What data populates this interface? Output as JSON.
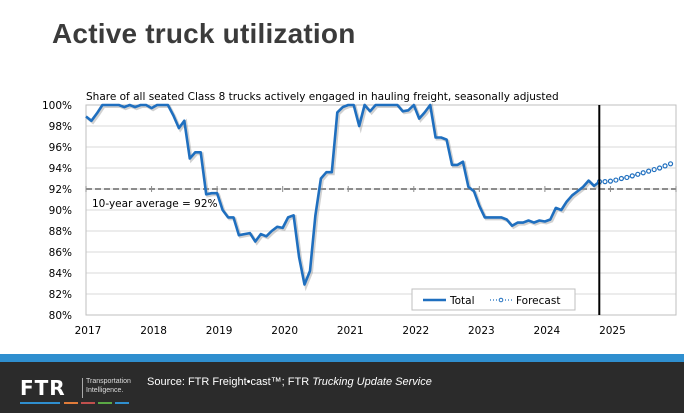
{
  "slide": {
    "title": "Active truck utilization"
  },
  "footer": {
    "logo_text": "FTR",
    "logo_subtitle_line1": "Transportation",
    "logo_subtitle_line2": "Intelligence.",
    "source_prefix": "Source: FTR Freight•cast™; FTR ",
    "source_italic": "Trucking Update Service",
    "stripe_color": "#2f8fcf",
    "logo_bar_colors": [
      "#2f8fcf",
      "#e07b39",
      "#c0504d",
      "#5aa845",
      "#2f8fcf"
    ]
  },
  "chart_data": {
    "type": "line",
    "title": "Share of all seated Class 8 trucks actively engaged in hauling freight, seasonally adjusted",
    "xlabel": "",
    "ylabel": "",
    "ylim": [
      80,
      100
    ],
    "xlim": [
      2017,
      2026
    ],
    "y_ticks": [
      "80%",
      "82%",
      "84%",
      "86%",
      "88%",
      "90%",
      "92%",
      "94%",
      "96%",
      "98%",
      "100%"
    ],
    "y_tick_values": [
      80,
      82,
      84,
      86,
      88,
      90,
      92,
      94,
      96,
      98,
      100
    ],
    "x_ticks": [
      "2017",
      "2018",
      "2019",
      "2020",
      "2021",
      "2022",
      "2023",
      "2024",
      "2025"
    ],
    "x_tick_values": [
      2017,
      2018,
      2019,
      2020,
      2021,
      2022,
      2023,
      2024,
      2025
    ],
    "grid": true,
    "legend": {
      "position": "bottom-right",
      "entries": [
        "Total",
        "Forecast"
      ]
    },
    "reference_line": {
      "value": 92,
      "label": "10-year average = 92%",
      "style": "dashed",
      "color": "#8c8c8c"
    },
    "vertical_marker": {
      "x": 2024.83,
      "color": "#000000"
    },
    "colors": {
      "total": "#1f6fbf",
      "forecast": "#1f6fbf",
      "grid": "#d9d9d9"
    },
    "series": [
      {
        "name": "Total",
        "style": "solid",
        "x": [
          2017.0,
          2017.083,
          2017.167,
          2017.25,
          2017.333,
          2017.417,
          2017.5,
          2017.583,
          2017.667,
          2017.75,
          2017.833,
          2017.917,
          2018.0,
          2018.083,
          2018.167,
          2018.25,
          2018.333,
          2018.417,
          2018.5,
          2018.583,
          2018.667,
          2018.75,
          2018.833,
          2018.917,
          2019.0,
          2019.083,
          2019.167,
          2019.25,
          2019.333,
          2019.417,
          2019.5,
          2019.583,
          2019.667,
          2019.75,
          2019.833,
          2019.917,
          2020.0,
          2020.083,
          2020.167,
          2020.25,
          2020.333,
          2020.417,
          2020.5,
          2020.583,
          2020.667,
          2020.75,
          2020.833,
          2020.917,
          2021.0,
          2021.083,
          2021.167,
          2021.25,
          2021.333,
          2021.417,
          2021.5,
          2021.583,
          2021.667,
          2021.75,
          2021.833,
          2021.917,
          2022.0,
          2022.083,
          2022.167,
          2022.25,
          2022.333,
          2022.417,
          2022.5,
          2022.583,
          2022.667,
          2022.75,
          2022.833,
          2022.917,
          2023.0,
          2023.083,
          2023.167,
          2023.25,
          2023.333,
          2023.417,
          2023.5,
          2023.583,
          2023.667,
          2023.75,
          2023.833,
          2023.917,
          2024.0,
          2024.083,
          2024.167,
          2024.25,
          2024.333,
          2024.417,
          2024.5,
          2024.583,
          2024.667,
          2024.75,
          2024.833
        ],
        "values": [
          98.9,
          98.5,
          99.2,
          100.0,
          100.0,
          100.0,
          100.0,
          99.8,
          100.0,
          99.8,
          100.0,
          100.0,
          99.7,
          100.0,
          100.0,
          100.0,
          99.0,
          97.8,
          98.5,
          94.9,
          95.5,
          95.5,
          91.5,
          91.6,
          91.6,
          90.0,
          89.3,
          89.3,
          87.6,
          87.7,
          87.8,
          87.0,
          87.7,
          87.5,
          88.0,
          88.4,
          88.3,
          89.3,
          89.5,
          85.5,
          82.9,
          84.2,
          89.5,
          93.0,
          93.6,
          93.6,
          99.3,
          99.8,
          100.0,
          100.0,
          98.0,
          100.0,
          99.4,
          100.0,
          100.0,
          100.0,
          100.0,
          100.0,
          99.4,
          99.5,
          100.0,
          98.7,
          99.3,
          100.0,
          96.9,
          96.9,
          96.7,
          94.3,
          94.3,
          94.6,
          92.2,
          91.8,
          90.4,
          89.3,
          89.3,
          89.3,
          89.3,
          89.1,
          88.5,
          88.8,
          88.8,
          89.0,
          88.8,
          89.0,
          88.9,
          89.1,
          90.2,
          90.0,
          90.8,
          91.4,
          91.8,
          92.2,
          92.8,
          92.3,
          92.7
        ]
      },
      {
        "name": "Forecast",
        "style": "dotted-markers",
        "x": [
          2024.833,
          2024.917,
          2025.0,
          2025.083,
          2025.167,
          2025.25,
          2025.333,
          2025.417,
          2025.5,
          2025.583,
          2025.667,
          2025.75,
          2025.833,
          2025.917
        ],
        "values": [
          92.7,
          92.7,
          92.75,
          92.85,
          93.0,
          93.1,
          93.25,
          93.4,
          93.55,
          93.7,
          93.85,
          94.0,
          94.2,
          94.4
        ]
      }
    ]
  }
}
